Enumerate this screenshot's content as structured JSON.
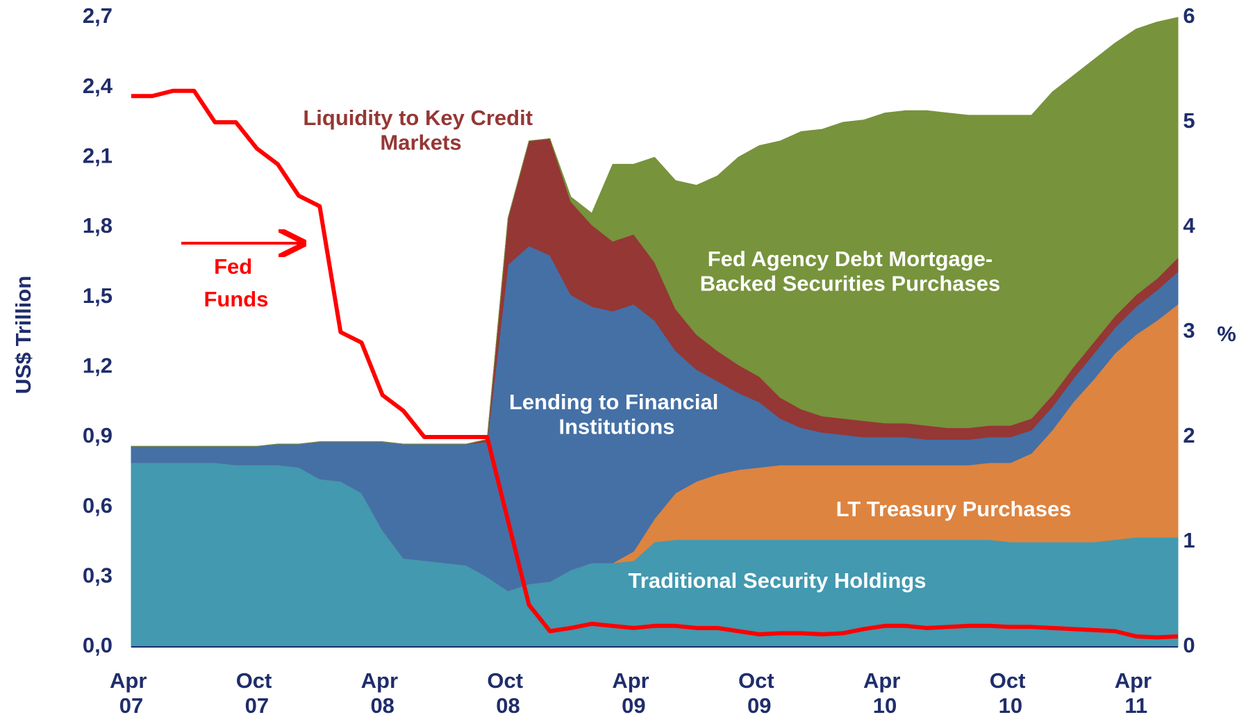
{
  "chart_data": {
    "type": "stacked_area_line",
    "categories": [
      "Apr 07",
      null,
      null,
      null,
      null,
      null,
      "Oct 07",
      null,
      null,
      null,
      null,
      null,
      "Apr 08",
      null,
      null,
      null,
      null,
      null,
      "Oct 08",
      null,
      null,
      null,
      null,
      null,
      "Apr 09",
      null,
      null,
      null,
      null,
      null,
      "Oct 09",
      null,
      null,
      null,
      null,
      null,
      "Apr 10",
      null,
      null,
      null,
      null,
      null,
      "Oct 10",
      null,
      null,
      null,
      null,
      null,
      "Apr 11",
      null,
      null
    ],
    "ylabel": "US$ Trillion",
    "y2label": "%",
    "ylim": [
      0,
      2.7
    ],
    "yticks": [
      {
        "value": 0,
        "label": "0,0"
      },
      {
        "value": 0.3,
        "label": "0,3"
      },
      {
        "value": 0.6,
        "label": "0,6"
      },
      {
        "value": 0.9,
        "label": "0,9"
      },
      {
        "value": 1.2,
        "label": "1,2"
      },
      {
        "value": 1.5,
        "label": "1,5"
      },
      {
        "value": 1.8,
        "label": "1,8"
      },
      {
        "value": 2.1,
        "label": "2,1"
      },
      {
        "value": 2.4,
        "label": "2,4"
      },
      {
        "value": 2.7,
        "label": "2,7"
      }
    ],
    "y2lim": [
      0,
      6
    ],
    "y2ticks": [
      0,
      1,
      2,
      3,
      4,
      5,
      6
    ],
    "series": [
      {
        "name": "Traditional Security Holdings",
        "color": "#4299b0",
        "stacked": true,
        "values": [
          0.79,
          0.79,
          0.79,
          0.79,
          0.79,
          0.78,
          0.78,
          0.78,
          0.77,
          0.72,
          0.71,
          0.66,
          0.5,
          0.38,
          0.37,
          0.36,
          0.35,
          0.3,
          0.24,
          0.27,
          0.28,
          0.33,
          0.36,
          0.36,
          0.37,
          0.45,
          0.46,
          0.46,
          0.46,
          0.46,
          0.46,
          0.46,
          0.46,
          0.46,
          0.46,
          0.46,
          0.46,
          0.46,
          0.46,
          0.46,
          0.46,
          0.46,
          0.45,
          0.45,
          0.45,
          0.45,
          0.45,
          0.46,
          0.47,
          0.47,
          0.47
        ]
      },
      {
        "name": "LT Treasury Purchases",
        "color": "#dd8440",
        "stacked": true,
        "values": [
          0,
          0,
          0,
          0,
          0,
          0,
          0,
          0,
          0,
          0,
          0,
          0,
          0,
          0,
          0,
          0,
          0,
          0,
          0,
          0,
          0,
          0,
          0,
          0,
          0.04,
          0.1,
          0.2,
          0.25,
          0.28,
          0.3,
          0.31,
          0.32,
          0.32,
          0.32,
          0.32,
          0.32,
          0.32,
          0.32,
          0.32,
          0.32,
          0.32,
          0.33,
          0.34,
          0.38,
          0.48,
          0.6,
          0.7,
          0.8,
          0.87,
          0.93,
          1.0
        ]
      },
      {
        "name": "Lending to Financial Institutions",
        "color": "#4470a6",
        "stacked": true,
        "values": [
          0.07,
          0.07,
          0.07,
          0.07,
          0.07,
          0.08,
          0.08,
          0.09,
          0.1,
          0.16,
          0.17,
          0.22,
          0.38,
          0.49,
          0.5,
          0.51,
          0.52,
          0.58,
          1.4,
          1.45,
          1.4,
          1.18,
          1.1,
          1.08,
          1.06,
          0.85,
          0.61,
          0.48,
          0.4,
          0.33,
          0.28,
          0.2,
          0.16,
          0.14,
          0.13,
          0.12,
          0.12,
          0.12,
          0.11,
          0.11,
          0.11,
          0.11,
          0.11,
          0.1,
          0.1,
          0.1,
          0.11,
          0.11,
          0.12,
          0.13,
          0.14
        ]
      },
      {
        "name": "Liquidity to Key Credit Markets",
        "color": "#953735",
        "stacked": true,
        "values": [
          0,
          0,
          0,
          0,
          0,
          0,
          0,
          0,
          0,
          0,
          0,
          0,
          0,
          0,
          0,
          0,
          0,
          0.01,
          0.2,
          0.45,
          0.5,
          0.4,
          0.35,
          0.3,
          0.3,
          0.25,
          0.18,
          0.15,
          0.13,
          0.12,
          0.11,
          0.09,
          0.08,
          0.07,
          0.07,
          0.07,
          0.06,
          0.06,
          0.06,
          0.05,
          0.05,
          0.05,
          0.05,
          0.05,
          0.05,
          0.05,
          0.05,
          0.05,
          0.05,
          0.05,
          0.06
        ]
      },
      {
        "name": "Fed Agency Debt Mortgage-Backed Securities Purchases",
        "color": "#77933c",
        "stacked": true,
        "values": [
          0,
          0,
          0,
          0,
          0,
          0,
          0,
          0,
          0,
          0,
          0,
          0,
          0,
          0,
          0,
          0,
          0,
          0,
          0,
          0,
          0,
          0.02,
          0.05,
          0.33,
          0.3,
          0.45,
          0.55,
          0.64,
          0.75,
          0.89,
          0.99,
          1.1,
          1.19,
          1.23,
          1.27,
          1.29,
          1.33,
          1.34,
          1.35,
          1.35,
          1.34,
          1.33,
          1.33,
          1.3,
          1.3,
          1.25,
          1.21,
          1.17,
          1.14,
          1.1,
          1.03
        ]
      },
      {
        "name": "Fed Funds",
        "color": "#ff0000",
        "axis": "y2",
        "values": [
          5.25,
          5.25,
          5.3,
          5.3,
          5.0,
          5.0,
          4.75,
          4.6,
          4.3,
          4.2,
          3.0,
          2.9,
          2.4,
          2.25,
          2.0,
          2.0,
          2.0,
          2.0,
          1.2,
          0.4,
          0.15,
          0.18,
          0.22,
          0.2,
          0.18,
          0.2,
          0.2,
          0.18,
          0.18,
          0.15,
          0.12,
          0.13,
          0.13,
          0.12,
          0.13,
          0.17,
          0.2,
          0.2,
          0.18,
          0.19,
          0.2,
          0.2,
          0.19,
          0.19,
          0.18,
          0.17,
          0.16,
          0.15,
          0.1,
          0.09,
          0.1
        ]
      }
    ]
  }
}
